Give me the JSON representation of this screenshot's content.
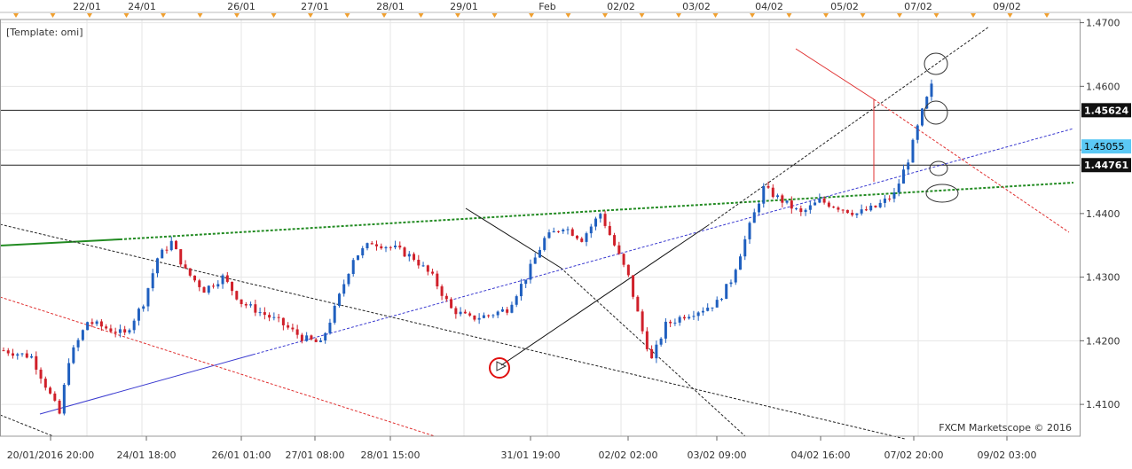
{
  "window": {
    "template_label": "[Template: omi]",
    "watermark": "FXCM Marketscope © 2016"
  },
  "colors": {
    "bull": "#1f5fbf",
    "bear": "#d0202a",
    "grid": "#e6e6e6",
    "price_badge": "#5bc8f5",
    "hline": "#222222",
    "trend_green": "#228b22",
    "trend_blue": "#3a3ad0",
    "trend_red": "#e03030"
  },
  "chart_data": {
    "type": "candlestick",
    "symbol_hint": "",
    "x_top_labels": [
      "22/01",
      "24/01",
      "26/01",
      "27/01",
      "28/01",
      "29/01",
      "Feb",
      "02/02",
      "03/02",
      "04/02",
      "05/02",
      "07/02",
      "09/02"
    ],
    "x_bottom_labels": [
      "20/01/2016 20:00",
      "24/01 18:00",
      "26/01 01:00",
      "27/01 08:00",
      "28/01 15:00",
      "31/01 19:00",
      "02/02 02:00",
      "03/02 09:00",
      "04/02 16:00",
      "07/02 20:00",
      "09/02 03:00"
    ],
    "y_ticks": [
      "1.4700",
      "1.4600",
      "1.4500",
      "1.4400",
      "1.4300",
      "1.4200",
      "1.4100"
    ],
    "ylim": [
      1.405,
      1.4705
    ],
    "horizontal_levels": [
      {
        "value": 1.45624,
        "label": "1.45624",
        "style": "dark"
      },
      {
        "value": 1.44761,
        "label": "1.44761",
        "style": "dark"
      },
      {
        "value": 1.45055,
        "label": "1.45055",
        "style": "current"
      }
    ],
    "candle_count": 200,
    "anchor_prices": [
      [
        0,
        1.4185
      ],
      [
        6,
        1.4175
      ],
      [
        10,
        1.4115
      ],
      [
        12,
        1.4085
      ],
      [
        14,
        1.417
      ],
      [
        18,
        1.423
      ],
      [
        22,
        1.422
      ],
      [
        26,
        1.421
      ],
      [
        30,
        1.426
      ],
      [
        33,
        1.433
      ],
      [
        36,
        1.4355
      ],
      [
        39,
        1.431
      ],
      [
        43,
        1.428
      ],
      [
        47,
        1.43
      ],
      [
        51,
        1.426
      ],
      [
        55,
        1.4245
      ],
      [
        59,
        1.423
      ],
      [
        64,
        1.4205
      ],
      [
        68,
        1.4195
      ],
      [
        71,
        1.425
      ],
      [
        75,
        1.433
      ],
      [
        79,
        1.4355
      ],
      [
        84,
        1.4345
      ],
      [
        88,
        1.433
      ],
      [
        92,
        1.43
      ],
      [
        96,
        1.425
      ],
      [
        100,
        1.4235
      ],
      [
        104,
        1.424
      ],
      [
        108,
        1.425
      ],
      [
        112,
        1.43
      ],
      [
        116,
        1.436
      ],
      [
        120,
        1.438
      ],
      [
        124,
        1.436
      ],
      [
        128,
        1.44
      ],
      [
        131,
        1.435
      ],
      [
        134,
        1.43
      ],
      [
        137,
        1.4215
      ],
      [
        139,
        1.417
      ],
      [
        142,
        1.4225
      ],
      [
        146,
        1.424
      ],
      [
        150,
        1.425
      ],
      [
        153,
        1.426
      ],
      [
        156,
        1.4295
      ],
      [
        160,
        1.438
      ],
      [
        163,
        1.444
      ],
      [
        167,
        1.442
      ],
      [
        171,
        1.44
      ],
      [
        175,
        1.442
      ],
      [
        179,
        1.441
      ],
      [
        183,
        1.44
      ],
      [
        187,
        1.441
      ],
      [
        191,
        1.443
      ],
      [
        194,
        1.4485
      ],
      [
        197,
        1.456
      ],
      [
        199,
        1.46
      ]
    ],
    "grid": true,
    "annotations": [
      "ellipse markers at right side",
      "red circle at swing low",
      "dotted trend and fan lines"
    ]
  }
}
